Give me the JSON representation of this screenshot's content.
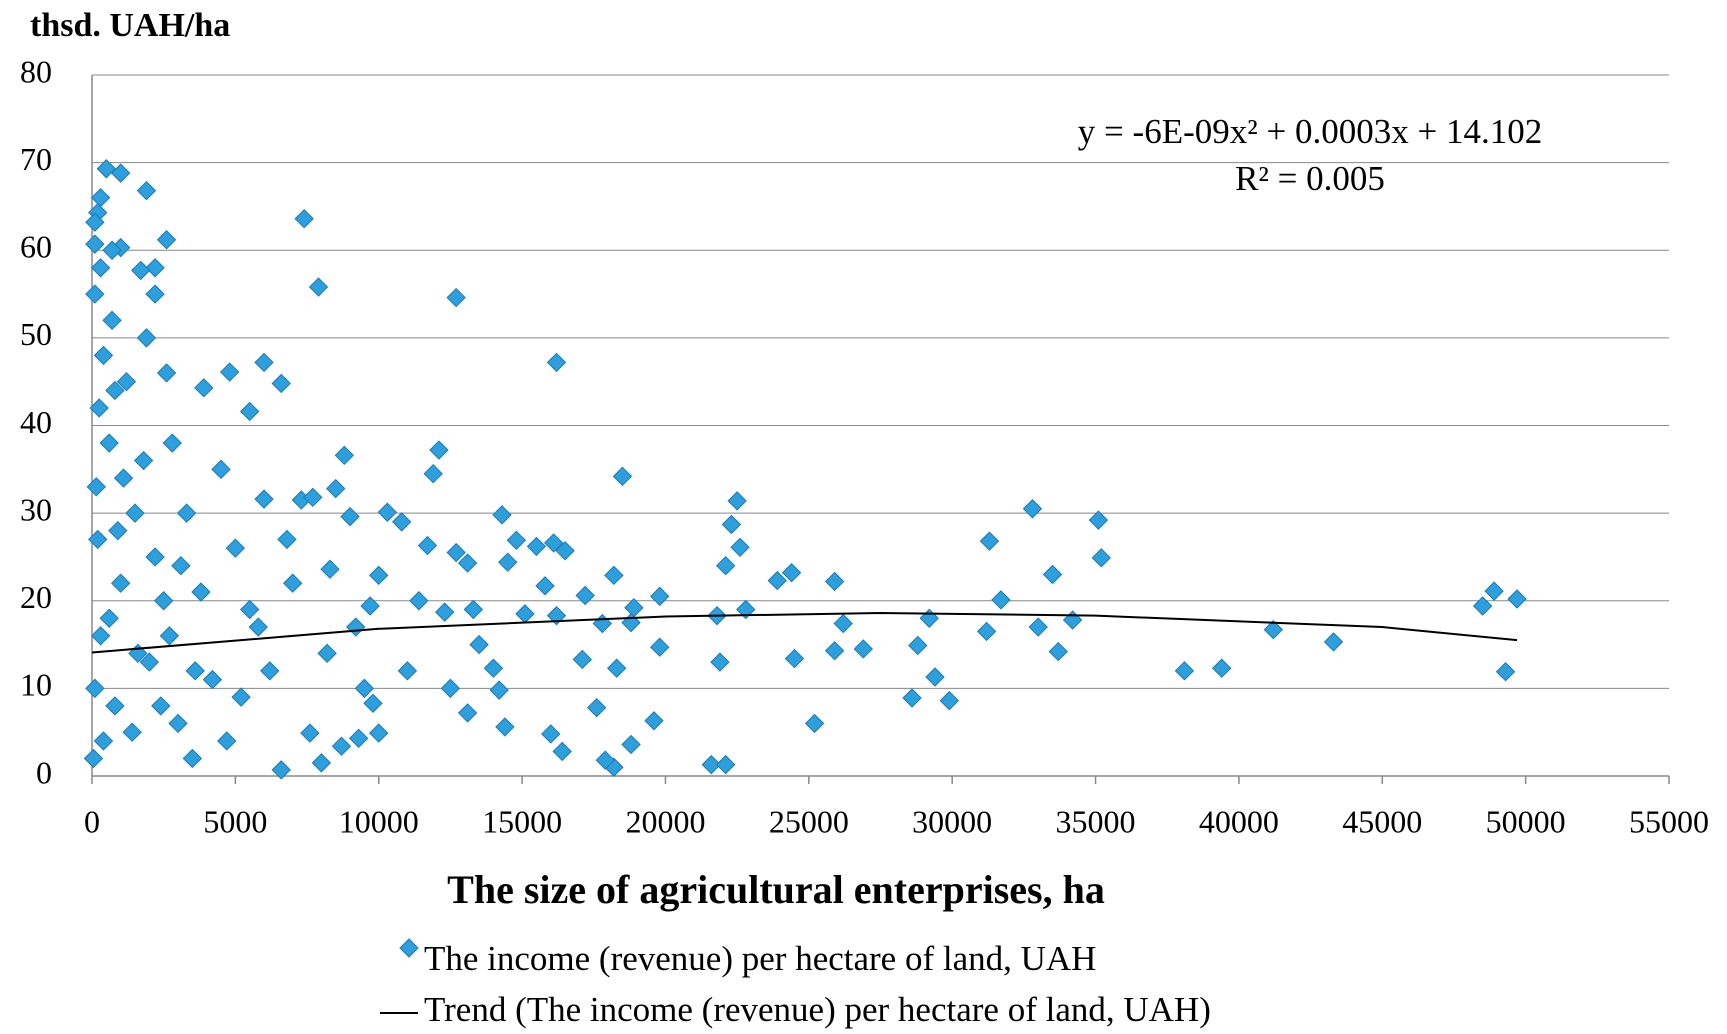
{
  "chart_data": {
    "type": "scatter",
    "y_label": "thsd. UAH/ha",
    "x_label": "The size of agricultural enterprises, ha",
    "annotations": [
      "y = -6E-09x² + 0.0003x + 14.102",
      "R² = 0.005"
    ],
    "xlim": [
      0,
      55000
    ],
    "xticks": [
      0,
      5000,
      10000,
      15000,
      20000,
      25000,
      30000,
      35000,
      40000,
      45000,
      50000,
      55000
    ],
    "ylim": [
      0,
      80
    ],
    "yticks": [
      0,
      10,
      20,
      30,
      40,
      50,
      60,
      70,
      80
    ],
    "grid": true,
    "series": [
      {
        "name": "The income (revenue) per hectare of land, UAH",
        "type": "scatter",
        "color": "#2c9fdc",
        "x": [
          500,
          1000,
          1900,
          300,
          200,
          7400,
          100,
          2600,
          100,
          1000,
          700,
          7900,
          12700,
          100,
          2200,
          1700,
          2200,
          16200,
          6000,
          4800,
          6600,
          3900,
          5500,
          12100,
          8800,
          11900,
          18500,
          22500,
          32800,
          35100,
          31300,
          35200,
          33500,
          31700,
          29200,
          31200,
          33000,
          33700,
          34200,
          38100,
          39400,
          41200,
          43300,
          48500,
          48900,
          49700,
          49300,
          28600,
          29400,
          29900,
          28800,
          25900,
          26200,
          25900,
          26900,
          25200,
          24500,
          24400,
          23900,
          22800,
          22100,
          22300,
          22600,
          21800,
          21900,
          21600,
          22100,
          19800,
          19800,
          19600,
          18900,
          18800,
          18800,
          18300,
          18200,
          18200,
          17900,
          17800,
          17600,
          17200,
          17100,
          16400,
          16500,
          16100,
          16200,
          16000,
          15800,
          15500,
          15100,
          14800,
          14500,
          14300,
          14400,
          14200,
          14000,
          13300,
          13100,
          12700,
          13100,
          12300,
          11700,
          11400,
          10800,
          10300,
          10000,
          10000,
          9700,
          9300,
          9000,
          8700,
          8500,
          8000,
          7600,
          7300,
          6600,
          6000,
          5800,
          5000,
          4200,
          3000,
          2500,
          2000,
          1500,
          1000,
          800,
          600,
          400,
          300,
          200,
          100,
          50,
          150,
          250,
          700,
          1200,
          1800,
          2200,
          2700,
          3300,
          3800,
          4500,
          5200,
          6200,
          7000,
          8200,
          9200,
          11000,
          12500,
          13500,
          1400,
          3500,
          4700,
          600,
          900,
          1600,
          2400,
          3100,
          5500,
          6800,
          9500,
          2800,
          3600,
          400,
          1100,
          1900,
          300,
          2600,
          800,
          7700,
          8300,
          9800
        ],
        "values": [
          69.3,
          68.8,
          66.8,
          66,
          64.3,
          63.6,
          63.2,
          61.2,
          60.7,
          60.3,
          60,
          55.8,
          54.6,
          55,
          58,
          57.7,
          55,
          47.2,
          47.2,
          46.1,
          44.8,
          44.3,
          41.6,
          37.2,
          36.6,
          34.5,
          34.2,
          31.4,
          30.5,
          29.2,
          26.8,
          24.9,
          23,
          20.1,
          18,
          16.5,
          17,
          14.2,
          17.8,
          12,
          12.3,
          16.7,
          15.3,
          19.4,
          21.1,
          20.2,
          11.9,
          8.9,
          11.3,
          8.6,
          14.9,
          22.2,
          17.4,
          14.3,
          14.5,
          6,
          13.4,
          23.2,
          22.3,
          19,
          24,
          28.7,
          26.1,
          18.3,
          13,
          1.3,
          1.3,
          20.5,
          14.7,
          6.3,
          19.2,
          17.5,
          3.6,
          12.3,
          22.9,
          1,
          1.8,
          17.4,
          7.8,
          20.6,
          13.3,
          2.8,
          25.7,
          26.6,
          18.3,
          4.8,
          21.7,
          26.2,
          18.5,
          26.9,
          24.4,
          29.8,
          5.6,
          9.8,
          12.3,
          19,
          24.3,
          25.5,
          7.2,
          18.7,
          26.3,
          20,
          29,
          30.1,
          22.9,
          4.9,
          19.4,
          4.3,
          29.6,
          3.4,
          32.8,
          1.5,
          4.9,
          31.5,
          0.7,
          31.6,
          17,
          26,
          11,
          6,
          20,
          13,
          30,
          22,
          8,
          38,
          48,
          16,
          27,
          10,
          2,
          33,
          42,
          52,
          45,
          36,
          25,
          16,
          30,
          21,
          35,
          9,
          12,
          22,
          14,
          17,
          12,
          10,
          15,
          5,
          2,
          4,
          18,
          28,
          14,
          8,
          24,
          19,
          27,
          10,
          38,
          12,
          4,
          34,
          50,
          58,
          46,
          44,
          31.8,
          23.6,
          8.3
        ]
      },
      {
        "name": "Trend (The income (revenue) per hectare of land, UAH)",
        "type": "line",
        "color": "#000000",
        "x": [
          0,
          10000,
          20000,
          27500,
          35000,
          45000,
          49700
        ],
        "values": [
          14.1,
          16.8,
          18.2,
          18.6,
          18.3,
          17,
          15.5
        ]
      }
    ]
  }
}
